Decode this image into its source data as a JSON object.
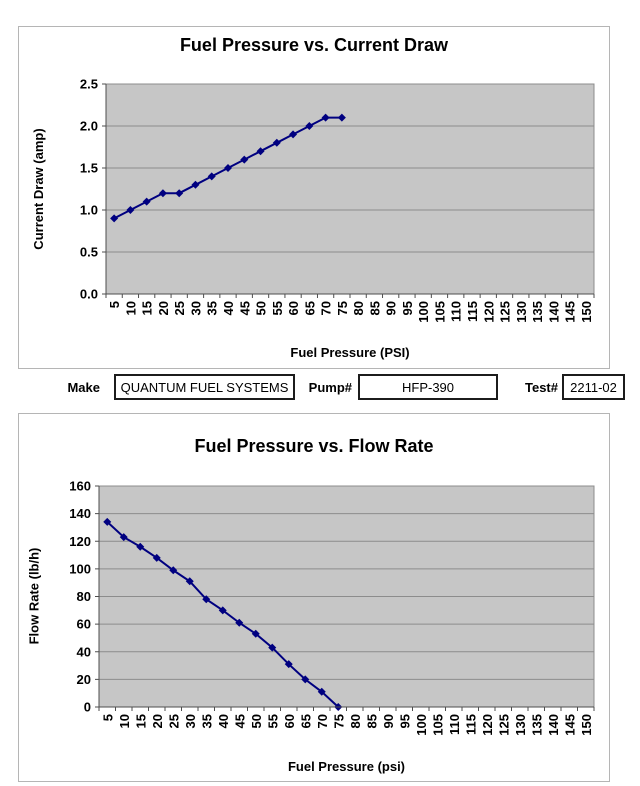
{
  "form": {
    "fields": [
      {
        "label": "Make",
        "value": "QUANTUM FUEL SYSTEMS"
      },
      {
        "label": "Pump#",
        "value": "HFP-390"
      },
      {
        "label": "Test#",
        "value": "2211-02"
      }
    ]
  },
  "chart_data": [
    {
      "type": "line",
      "title": "Fuel Pressure vs. Current Draw",
      "xlabel": "Fuel Pressure (PSI)",
      "ylabel": "Current Draw (amp)",
      "categories": [
        "5",
        "10",
        "15",
        "20",
        "25",
        "30",
        "35",
        "40",
        "45",
        "50",
        "55",
        "60",
        "65",
        "70",
        "75",
        "80",
        "85",
        "90",
        "95",
        "100",
        "105",
        "110",
        "115",
        "120",
        "125",
        "130",
        "135",
        "140",
        "145",
        "150"
      ],
      "x": [
        5,
        10,
        15,
        20,
        25,
        30,
        35,
        40,
        45,
        50,
        55,
        60,
        65,
        70,
        75
      ],
      "values": [
        0.9,
        1.0,
        1.1,
        1.2,
        1.2,
        1.3,
        1.4,
        1.5,
        1.6,
        1.7,
        1.8,
        1.9,
        2.0,
        2.1,
        2.1
      ],
      "yticks": [
        0,
        0.5,
        1,
        1.5,
        2,
        2.5
      ],
      "ytick_labels": [
        "0.0",
        "0.5",
        "1.0",
        "1.5",
        "2.0",
        "2.5"
      ],
      "ylim": [
        0,
        2.5
      ],
      "grid": true,
      "legend": "none",
      "marker": "diamond",
      "series_color": "#000080",
      "plot_bg": "#c6c6c6",
      "gridline_color": "#8c8c8c",
      "axis_color": "#4d4d4d"
    },
    {
      "type": "line",
      "title": "Fuel Pressure vs. Flow Rate",
      "xlabel": "Fuel Pressure (psi)",
      "ylabel": "Flow Rate (lb/h)",
      "categories": [
        "5",
        "10",
        "15",
        "20",
        "25",
        "30",
        "35",
        "40",
        "45",
        "50",
        "55",
        "60",
        "65",
        "70",
        "75",
        "80",
        "85",
        "90",
        "95",
        "100",
        "105",
        "110",
        "115",
        "120",
        "125",
        "130",
        "135",
        "140",
        "145",
        "150"
      ],
      "x": [
        5,
        10,
        15,
        20,
        25,
        30,
        35,
        40,
        45,
        50,
        55,
        60,
        65,
        70,
        75
      ],
      "values": [
        134,
        123,
        116,
        108,
        99,
        91,
        78,
        70,
        61,
        53,
        43,
        31,
        20,
        11,
        0
      ],
      "yticks": [
        0,
        20,
        40,
        60,
        80,
        100,
        120,
        140,
        160
      ],
      "ytick_labels": [
        "0",
        "20",
        "40",
        "60",
        "80",
        "100",
        "120",
        "140",
        "160"
      ],
      "ylim": [
        0,
        160
      ],
      "grid": true,
      "legend": "none",
      "marker": "diamond",
      "series_color": "#000080",
      "plot_bg": "#c6c6c6",
      "gridline_color": "#8c8c8c",
      "axis_color": "#4d4d4d"
    }
  ]
}
